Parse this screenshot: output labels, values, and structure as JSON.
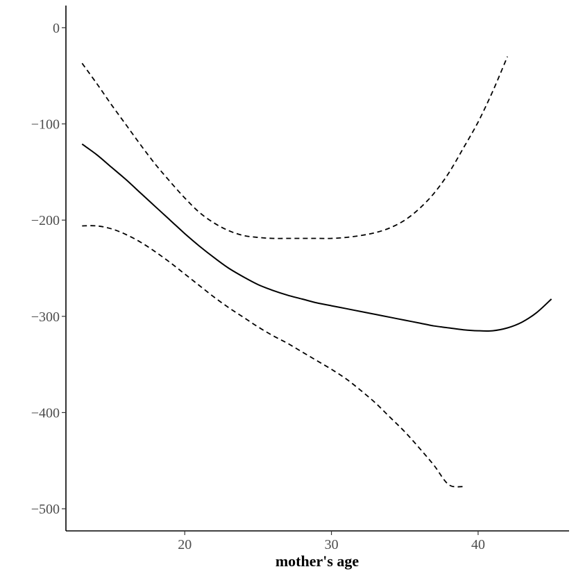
{
  "chart_data": {
    "type": "line",
    "title": "",
    "xlabel": "mother's age",
    "ylabel": "",
    "xlim": [
      11.9,
      46.2
    ],
    "ylim": [
      -523,
      23
    ],
    "x_ticks": [
      20,
      30,
      40
    ],
    "y_ticks": [
      0,
      -100,
      -200,
      -300,
      -400,
      -500
    ],
    "x_tick_labels": [
      "20",
      "30",
      "40"
    ],
    "y_tick_labels": [
      "0",
      "−100",
      "−200",
      "−300",
      "−400",
      "−500"
    ],
    "grid": false,
    "legend": "none",
    "series": [
      {
        "style": "solid",
        "x": [
          13,
          14,
          15,
          16,
          17,
          18,
          19,
          20,
          21,
          22,
          23,
          24,
          25,
          26,
          27,
          28,
          29,
          30,
          31,
          32,
          33,
          34,
          35,
          36,
          37,
          38,
          39,
          40,
          41,
          42,
          43,
          44,
          45
        ],
        "y": [
          -121,
          -132,
          -145,
          -158,
          -172,
          -186,
          -200,
          -214,
          -227,
          -239,
          -250,
          -259,
          -267,
          -273,
          -278,
          -282,
          -286,
          -289,
          -292,
          -295,
          -298,
          -301,
          -304,
          -307,
          -310,
          -312,
          -314,
          -315,
          -315,
          -312,
          -306,
          -296,
          -282
        ]
      },
      {
        "style": "dashed",
        "x": [
          13,
          14,
          15,
          16,
          17,
          18,
          19,
          20,
          21,
          22,
          23,
          24,
          25,
          26,
          27,
          28,
          29,
          30,
          31,
          32,
          33,
          34,
          35,
          36,
          37,
          38,
          39,
          40,
          41,
          42
        ],
        "y": [
          -37,
          -58,
          -80,
          -101,
          -122,
          -142,
          -160,
          -177,
          -192,
          -203,
          -211,
          -216,
          -218,
          -219,
          -219,
          -219,
          -219,
          -219,
          -218,
          -216,
          -213,
          -208,
          -200,
          -188,
          -172,
          -151,
          -125,
          -98,
          -66,
          -30
        ]
      },
      {
        "style": "dashed",
        "x": [
          13,
          14,
          15,
          16,
          17,
          18,
          19,
          20,
          21,
          22,
          23,
          24,
          25,
          26,
          27,
          28,
          29,
          30,
          31,
          32,
          33,
          34,
          35,
          36,
          37,
          38,
          39
        ],
        "y": [
          -206,
          -206,
          -209,
          -215,
          -223,
          -233,
          -244,
          -256,
          -268,
          -280,
          -291,
          -301,
          -311,
          -320,
          -328,
          -337,
          -346,
          -355,
          -365,
          -377,
          -390,
          -405,
          -420,
          -437,
          -455,
          -475,
          -477
        ]
      }
    ]
  }
}
